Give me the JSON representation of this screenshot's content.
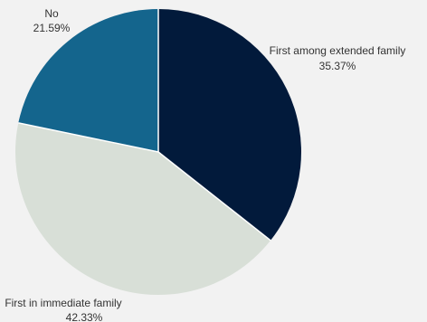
{
  "chart_data": {
    "type": "pie",
    "start_angle_deg": 0,
    "direction": "clockwise",
    "slices": [
      {
        "label": "First among extended family",
        "value": 35.37,
        "value_label": "35.37%",
        "color": "#021a3b"
      },
      {
        "label": "First in immediate family",
        "value": 42.33,
        "value_label": "42.33%",
        "color": "#d8dfd7"
      },
      {
        "label": "No",
        "value": 21.59,
        "value_label": "21.59%",
        "color": "#14658d"
      }
    ],
    "legend": "none"
  }
}
